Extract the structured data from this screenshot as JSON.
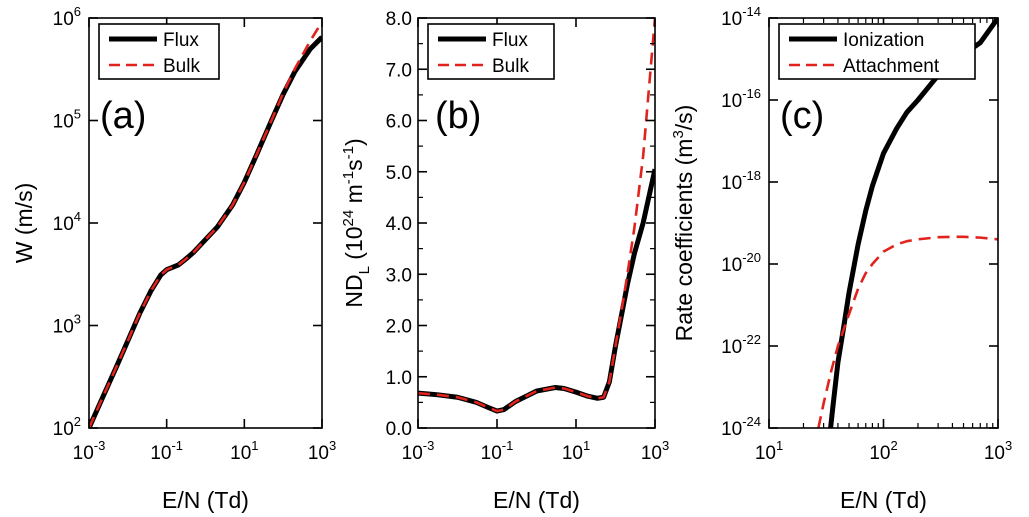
{
  "colors": {
    "flux": "#000000",
    "bulk": "#e0231c"
  },
  "chart_data": [
    {
      "type": "line",
      "panel_label": "(a)",
      "xlabel": "E/N (Td)",
      "ylabel": "W (m/s)",
      "xscale": "log",
      "yscale": "log",
      "xlim": [
        0.001,
        1000
      ],
      "ylim": [
        100,
        1000000
      ],
      "xticks": [
        {
          "base": "10",
          "exp": "-3"
        },
        {
          "base": "10",
          "exp": "-1"
        },
        {
          "base": "10",
          "exp": "1"
        },
        {
          "base": "10",
          "exp": "3"
        }
      ],
      "yticks": [
        {
          "base": "10",
          "exp": "2"
        },
        {
          "base": "10",
          "exp": "3"
        },
        {
          "base": "10",
          "exp": "4"
        },
        {
          "base": "10",
          "exp": "5"
        },
        {
          "base": "10",
          "exp": "6"
        }
      ],
      "legend": {
        "placement": "top-left",
        "entries": [
          "Flux",
          "Bulk"
        ]
      },
      "series": [
        {
          "name": "Flux",
          "style": "solid",
          "x": [
            0.001,
            0.002,
            0.005,
            0.01,
            0.02,
            0.04,
            0.07,
            0.1,
            0.2,
            0.3,
            0.5,
            1,
            2,
            5,
            10,
            20,
            50,
            100,
            200,
            500,
            1000
          ],
          "y": [
            100,
            180,
            390,
            710,
            1300,
            2200,
            3100,
            3500,
            3900,
            4400,
            5200,
            6900,
            9100,
            15000,
            25000,
            45000,
            100000,
            180000,
            300000,
            500000,
            650000
          ]
        },
        {
          "name": "Bulk",
          "style": "dashed",
          "x": [
            0.001,
            0.002,
            0.005,
            0.01,
            0.02,
            0.04,
            0.07,
            0.1,
            0.2,
            0.3,
            0.5,
            1,
            2,
            5,
            10,
            20,
            50,
            100,
            200,
            500,
            800
          ],
          "y": [
            100,
            180,
            390,
            710,
            1300,
            2200,
            3100,
            3500,
            3900,
            4400,
            5200,
            6900,
            9100,
            15000,
            25000,
            45000,
            100000,
            185000,
            320000,
            600000,
            800000
          ]
        }
      ]
    },
    {
      "type": "line",
      "panel_label": "(b)",
      "xlabel": "E/N (Td)",
      "ylabel": "ND",
      "ylabel_sub": "L",
      "ylabel_rest": " (10",
      "ylabel_sup1": "24",
      "ylabel_rest2": " m",
      "ylabel_sup2": "-1",
      "ylabel_rest3": "s",
      "ylabel_sup3": "-1",
      "ylabel_end": ")",
      "xscale": "log",
      "yscale": "linear",
      "xlim": [
        0.001,
        1000
      ],
      "ylim": [
        0,
        8
      ],
      "xticks": [
        {
          "base": "10",
          "exp": "-3"
        },
        {
          "base": "10",
          "exp": "-1"
        },
        {
          "base": "10",
          "exp": "1"
        },
        {
          "base": "10",
          "exp": "3"
        }
      ],
      "yticks": [
        "0.0",
        "1.0",
        "2.0",
        "3.0",
        "4.0",
        "5.0",
        "6.0",
        "7.0",
        "8.0"
      ],
      "legend": {
        "placement": "top-left",
        "entries": [
          "Flux",
          "Bulk"
        ]
      },
      "series": [
        {
          "name": "Flux",
          "style": "solid",
          "x": [
            0.001,
            0.003,
            0.01,
            0.03,
            0.06,
            0.1,
            0.15,
            0.3,
            1,
            3,
            5,
            10,
            20,
            35,
            50,
            70,
            100,
            150,
            200,
            300,
            500,
            1000
          ],
          "y": [
            0.68,
            0.65,
            0.6,
            0.5,
            0.4,
            0.33,
            0.36,
            0.52,
            0.72,
            0.79,
            0.77,
            0.7,
            0.62,
            0.58,
            0.6,
            0.9,
            1.6,
            2.3,
            2.8,
            3.4,
            4.0,
            5.05
          ]
        },
        {
          "name": "Bulk",
          "style": "dashed",
          "x": [
            0.001,
            0.003,
            0.01,
            0.03,
            0.06,
            0.1,
            0.15,
            0.3,
            1,
            3,
            5,
            10,
            20,
            35,
            50,
            70,
            100,
            150,
            200,
            300,
            500,
            1000
          ],
          "y": [
            0.68,
            0.65,
            0.6,
            0.5,
            0.4,
            0.33,
            0.36,
            0.52,
            0.72,
            0.79,
            0.77,
            0.7,
            0.62,
            0.58,
            0.6,
            0.9,
            1.6,
            2.4,
            3.0,
            3.9,
            5.3,
            8.0
          ]
        }
      ]
    },
    {
      "type": "line",
      "panel_label": "(c)",
      "xlabel": "E/N (Td)",
      "ylabel": "Rate coefficients (m",
      "ylabel_sup1": "3",
      "ylabel_end": "/s)",
      "xscale": "log",
      "yscale": "log",
      "xlim": [
        10,
        1000
      ],
      "ylim": [
        1e-24,
        1e-14
      ],
      "xticks": [
        {
          "base": "10",
          "exp": "1"
        },
        {
          "base": "10",
          "exp": "2"
        },
        {
          "base": "10",
          "exp": "3"
        }
      ],
      "yticks": [
        {
          "base": "10",
          "exp": "-24"
        },
        {
          "base": "10",
          "exp": "-22"
        },
        {
          "base": "10",
          "exp": "-20"
        },
        {
          "base": "10",
          "exp": "-18"
        },
        {
          "base": "10",
          "exp": "-16"
        },
        {
          "base": "10",
          "exp": "-14"
        }
      ],
      "legend": {
        "placement": "top-left",
        "entries": [
          "Ionization",
          "Attachment"
        ]
      },
      "series": [
        {
          "name": "Ionization",
          "style": "solid",
          "x": [
            34.5,
            36,
            40,
            45,
            50,
            60,
            70,
            80,
            100,
            130,
            160,
            200,
            300,
            400,
            500,
            700,
            1000
          ],
          "y": [
            1e-24,
            3e-24,
            4e-23,
            3e-22,
            2e-21,
            3e-20,
            2e-19,
            8e-19,
            5e-18,
            2e-17,
            5e-17,
            1e-16,
            4e-16,
            8e-16,
            1.3e-15,
            2.5e-15,
            1e-14
          ]
        },
        {
          "name": "Attachment",
          "style": "dashed",
          "x": [
            27,
            30,
            35,
            40,
            50,
            60,
            70,
            80,
            100,
            130,
            160,
            200,
            300,
            400,
            500,
            700,
            1000
          ],
          "y": [
            1e-24,
            4e-24,
            2.5e-23,
            1e-22,
            6e-22,
            2.5e-21,
            6e-21,
            1e-20,
            2e-20,
            3e-20,
            3.6e-20,
            4e-20,
            4.5e-20,
            4.6e-20,
            4.6e-20,
            4.4e-20,
            4e-20
          ]
        }
      ]
    }
  ]
}
